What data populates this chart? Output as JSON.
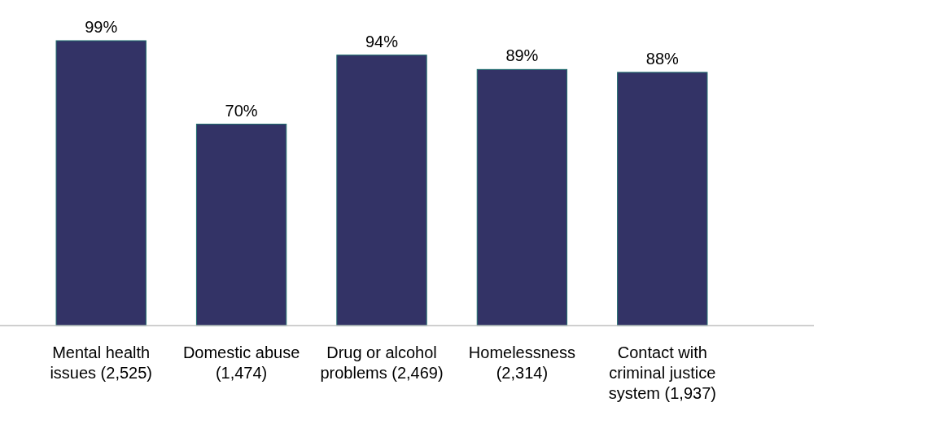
{
  "chart_data": {
    "type": "bar",
    "categories": [
      "Mental health issues (2,525)",
      "Domestic abuse (1,474)",
      "Drug or alcohol problems (2,469)",
      "Homelessness (2,314)",
      "Contact with criminal justice system (1,937)"
    ],
    "values": [
      99,
      70,
      94,
      89,
      88
    ],
    "value_labels": [
      "99%",
      "70%",
      "94%",
      "89%",
      "88%"
    ],
    "color": "#333366"
  }
}
